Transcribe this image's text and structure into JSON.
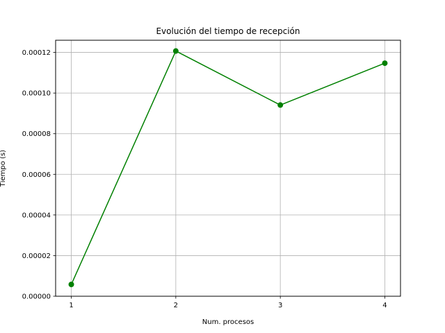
{
  "chart_data": {
    "type": "line",
    "title": "Evolución del tiempo de recepción",
    "xlabel": "Num. procesos",
    "ylabel": "Tiempo (s)",
    "x": [
      1,
      2,
      3,
      4
    ],
    "series": [
      {
        "values": [
          5.8e-06,
          0.0001207,
          9.41e-05,
          0.0001147
        ],
        "color": "#008000",
        "marker": "circle"
      }
    ],
    "xlim": [
      0.85,
      4.15
    ],
    "ylim": [
      0,
      0.000126
    ],
    "xticks": [
      1,
      2,
      3,
      4
    ],
    "xtick_labels": [
      "1",
      "2",
      "3",
      "4"
    ],
    "yticks": [
      0,
      2e-05,
      4e-05,
      6e-05,
      8e-05,
      0.0001,
      0.00012
    ],
    "ytick_labels": [
      "0.00000",
      "0.00002",
      "0.00004",
      "0.00006",
      "0.00008",
      "0.00010",
      "0.00012"
    ],
    "grid": true,
    "grid_color": "#b0b0b0"
  }
}
